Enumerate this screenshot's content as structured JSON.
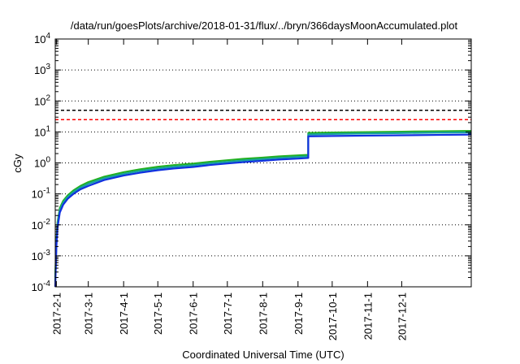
{
  "chart_data": {
    "type": "line",
    "title": "/data/run/goesPlots/archive/2018-01-31/flux/../bryn/366daysMoonAccumulated.plot",
    "xlabel": "Coordinated Universal Time (UTC)",
    "ylabel": "cGy",
    "y_scale": "log",
    "ylim": [
      0.0001,
      10000
    ],
    "xlim": [
      "2017-01-31",
      "2018-01-31"
    ],
    "y_ticks": [
      {
        "base": "10",
        "exp": "4",
        "value": 10000
      },
      {
        "base": "10",
        "exp": "3",
        "value": 1000
      },
      {
        "base": "10",
        "exp": "2",
        "value": 100
      },
      {
        "base": "10",
        "exp": "1",
        "value": 10
      },
      {
        "base": "10",
        "exp": "0",
        "value": 1
      },
      {
        "base": "10",
        "exp": "-1",
        "value": 0.1
      },
      {
        "base": "10",
        "exp": "-2",
        "value": 0.01
      },
      {
        "base": "10",
        "exp": "-3",
        "value": 0.001
      },
      {
        "base": "10",
        "exp": "-4",
        "value": 0.0001
      }
    ],
    "x_ticks": [
      {
        "label": "2017-2-1",
        "date": "2017-02-01"
      },
      {
        "label": "2017-3-1",
        "date": "2017-03-01"
      },
      {
        "label": "2017-4-1",
        "date": "2017-04-01"
      },
      {
        "label": "2017-5-1",
        "date": "2017-05-01"
      },
      {
        "label": "2017-6-1",
        "date": "2017-06-01"
      },
      {
        "label": "2017-7-1",
        "date": "2017-07-01"
      },
      {
        "label": "2017-8-1",
        "date": "2017-08-01"
      },
      {
        "label": "2017-9-1",
        "date": "2017-09-01"
      },
      {
        "label": "2017-10-1",
        "date": "2017-10-01"
      },
      {
        "label": "2017-11-1",
        "date": "2017-11-01"
      },
      {
        "label": "2017-12-1",
        "date": "2017-12-01"
      }
    ],
    "reference_lines": [
      {
        "value": 50,
        "color": "#000000",
        "style": "dashed"
      },
      {
        "value": 25,
        "color": "#ff0000",
        "style": "dashed"
      }
    ],
    "grid": "horizontal dotted at major ticks",
    "series": [
      {
        "color": "#22b022",
        "points": [
          [
            "2017-01-31",
            0.0002
          ],
          [
            "2017-02-01",
            0.003
          ],
          [
            "2017-02-02",
            0.012
          ],
          [
            "2017-02-04",
            0.035
          ],
          [
            "2017-02-07",
            0.06
          ],
          [
            "2017-02-11",
            0.09
          ],
          [
            "2017-02-16",
            0.13
          ],
          [
            "2017-02-22",
            0.18
          ],
          [
            "2017-03-01",
            0.24
          ],
          [
            "2017-03-15",
            0.36
          ],
          [
            "2017-04-01",
            0.5
          ],
          [
            "2017-04-15",
            0.62
          ],
          [
            "2017-05-01",
            0.75
          ],
          [
            "2017-05-15",
            0.85
          ],
          [
            "2017-06-01",
            0.95
          ],
          [
            "2017-06-15",
            1.08
          ],
          [
            "2017-07-01",
            1.22
          ],
          [
            "2017-07-15",
            1.35
          ],
          [
            "2017-08-01",
            1.48
          ],
          [
            "2017-08-15",
            1.62
          ],
          [
            "2017-09-01",
            1.75
          ],
          [
            "2017-09-10",
            1.82
          ],
          [
            "2017-09-10",
            9.3
          ],
          [
            "2017-10-01",
            9.6
          ],
          [
            "2017-11-01",
            9.9
          ],
          [
            "2017-12-01",
            10.2
          ],
          [
            "2018-01-01",
            10.5
          ],
          [
            "2018-01-31",
            10.8
          ]
        ]
      },
      {
        "color": "#18a0a0",
        "points": [
          [
            "2017-01-31",
            0.00015
          ],
          [
            "2017-02-01",
            0.0025
          ],
          [
            "2017-02-02",
            0.01
          ],
          [
            "2017-02-04",
            0.03
          ],
          [
            "2017-02-07",
            0.052
          ],
          [
            "2017-02-11",
            0.08
          ],
          [
            "2017-02-16",
            0.115
          ],
          [
            "2017-02-22",
            0.16
          ],
          [
            "2017-03-01",
            0.21
          ],
          [
            "2017-03-15",
            0.32
          ],
          [
            "2017-04-01",
            0.44
          ],
          [
            "2017-04-15",
            0.55
          ],
          [
            "2017-05-01",
            0.66
          ],
          [
            "2017-05-15",
            0.75
          ],
          [
            "2017-06-01",
            0.84
          ],
          [
            "2017-06-15",
            0.96
          ],
          [
            "2017-07-01",
            1.08
          ],
          [
            "2017-07-15",
            1.2
          ],
          [
            "2017-08-01",
            1.32
          ],
          [
            "2017-08-15",
            1.44
          ],
          [
            "2017-09-01",
            1.56
          ],
          [
            "2017-09-10",
            1.62
          ],
          [
            "2017-09-10",
            8.3
          ],
          [
            "2017-10-01",
            8.6
          ],
          [
            "2017-11-01",
            8.9
          ],
          [
            "2017-12-01",
            9.2
          ],
          [
            "2018-01-01",
            9.5
          ],
          [
            "2018-01-31",
            9.7
          ]
        ]
      },
      {
        "color": "#1030e0",
        "points": [
          [
            "2017-01-31",
            0.0001
          ],
          [
            "2017-02-01",
            0.002
          ],
          [
            "2017-02-02",
            0.008
          ],
          [
            "2017-02-04",
            0.025
          ],
          [
            "2017-02-07",
            0.045
          ],
          [
            "2017-02-11",
            0.07
          ],
          [
            "2017-02-16",
            0.1
          ],
          [
            "2017-02-22",
            0.14
          ],
          [
            "2017-03-01",
            0.18
          ],
          [
            "2017-03-15",
            0.28
          ],
          [
            "2017-04-01",
            0.39
          ],
          [
            "2017-04-15",
            0.48
          ],
          [
            "2017-05-01",
            0.58
          ],
          [
            "2017-05-15",
            0.66
          ],
          [
            "2017-06-01",
            0.74
          ],
          [
            "2017-06-15",
            0.85
          ],
          [
            "2017-07-01",
            0.96
          ],
          [
            "2017-07-15",
            1.06
          ],
          [
            "2017-08-01",
            1.17
          ],
          [
            "2017-08-15",
            1.28
          ],
          [
            "2017-09-01",
            1.38
          ],
          [
            "2017-09-10",
            1.44
          ],
          [
            "2017-09-10",
            7.2
          ],
          [
            "2017-10-01",
            7.4
          ],
          [
            "2017-11-01",
            7.6
          ],
          [
            "2017-12-01",
            7.8
          ],
          [
            "2018-01-01",
            8.0
          ],
          [
            "2018-01-31",
            8.2
          ]
        ]
      }
    ]
  }
}
